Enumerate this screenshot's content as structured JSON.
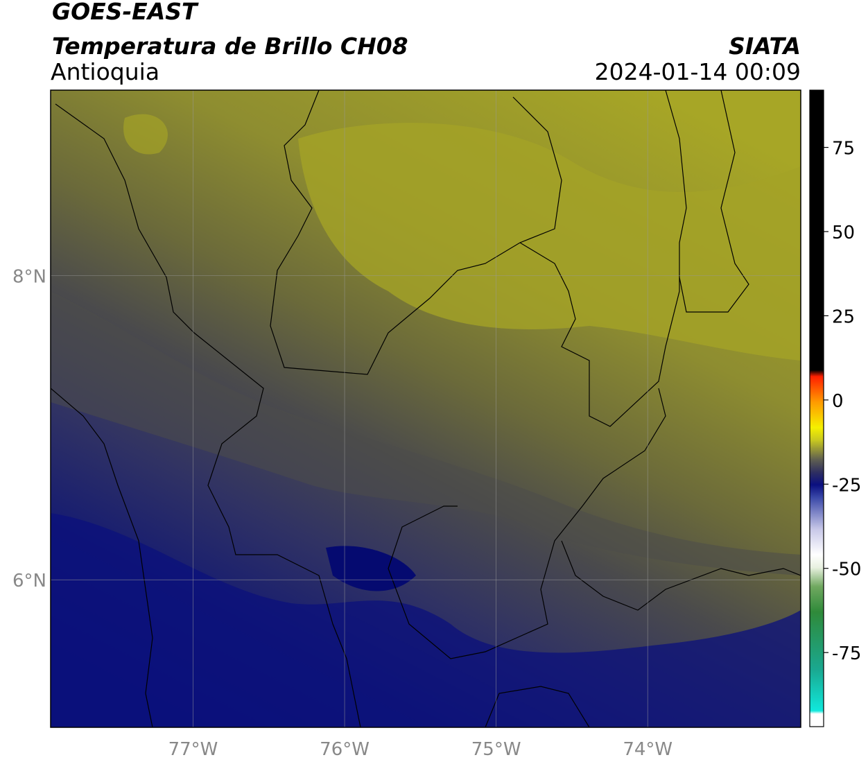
{
  "header": {
    "title": "GOES-EAST",
    "subtitle": "Temperatura de Brillo CH08",
    "source": "SIATA",
    "region": "Antioquia",
    "datetime": "2024-01-14 00:09"
  },
  "map": {
    "lonlim": [
      -77.94,
      -72.99
    ],
    "latlim": [
      5.03,
      9.22
    ],
    "lonticks": [
      {
        "value": -77,
        "label": "77°W"
      },
      {
        "value": -76,
        "label": "76°W"
      },
      {
        "value": -75,
        "label": "75°W"
      },
      {
        "value": -74,
        "label": "74°W"
      }
    ],
    "latticks": [
      {
        "value": 8,
        "label": "8°N"
      },
      {
        "value": 6,
        "label": "6°N"
      }
    ]
  },
  "colorbar": {
    "lim": [
      -97,
      92
    ],
    "ticks": [
      75,
      50,
      25,
      0,
      -25,
      -50,
      -75
    ]
  }
}
